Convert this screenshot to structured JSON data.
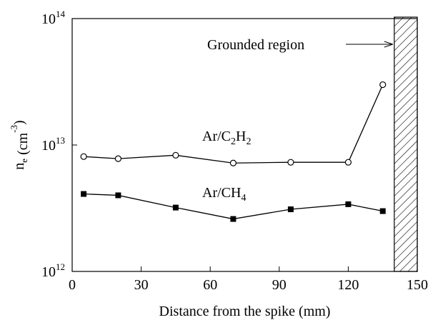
{
  "chart_data": {
    "type": "line",
    "xlabel": "Distance from the spike (mm)",
    "ylabel": [
      "n",
      "e",
      " (cm",
      "-3",
      ")"
    ],
    "x": [
      5,
      20,
      45,
      70,
      95,
      120,
      135
    ],
    "series": [
      {
        "name": [
          "Ar/C",
          "2",
          "H",
          "2"
        ],
        "marker": "open-circle",
        "color": "#000000",
        "values": [
          8100000000000.0,
          7800000000000.0,
          8300000000000.0,
          7200000000000.0,
          7300000000000.0,
          7300000000000.0,
          30000000000000.0
        ]
      },
      {
        "name": [
          "Ar/CH",
          "4"
        ],
        "marker": "filled-square",
        "color": "#000000",
        "values": [
          4100000000000.0,
          4000000000000.0,
          3200000000000.0,
          2600000000000.0,
          3100000000000.0,
          3400000000000.0,
          3000000000000.0
        ]
      }
    ],
    "xlim": [
      0,
      150
    ],
    "xticks": [
      0,
      30,
      60,
      90,
      120,
      150
    ],
    "ylim": [
      1000000000000.0,
      100000000000000.0
    ],
    "yscale": "log",
    "yticks": [
      {
        "value": 1000000000000.0,
        "label": "10",
        "exponent": "12"
      },
      {
        "value": 10000000000000.0,
        "label": "10",
        "exponent": "13"
      },
      {
        "value": 100000000000000.0,
        "label": "10",
        "exponent": "14"
      }
    ],
    "shaded_region": {
      "xlim": [
        140,
        150
      ],
      "label": "Grounded region"
    }
  }
}
